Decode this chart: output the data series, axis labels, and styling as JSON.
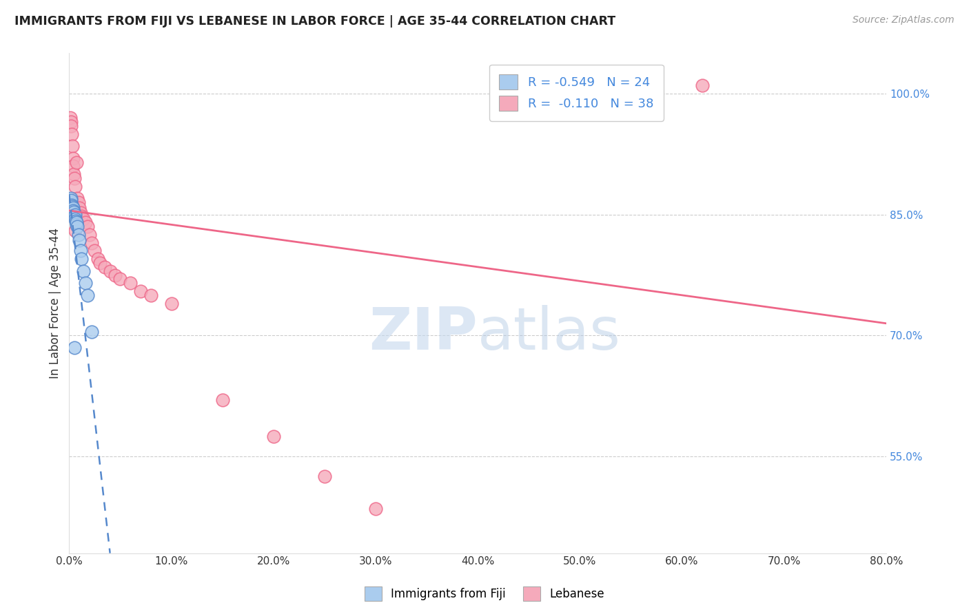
{
  "title": "IMMIGRANTS FROM FIJI VS LEBANESE IN LABOR FORCE | AGE 35-44 CORRELATION CHART",
  "source": "Source: ZipAtlas.com",
  "ylabel": "In Labor Force | Age 35-44",
  "x_tick_values": [
    0.0,
    10.0,
    20.0,
    30.0,
    40.0,
    50.0,
    60.0,
    70.0,
    80.0
  ],
  "y_tick_values": [
    55.0,
    70.0,
    85.0,
    100.0
  ],
  "xlim": [
    0.0,
    80.0
  ],
  "ylim": [
    43.0,
    105.0
  ],
  "fiji_R": "-0.549",
  "fiji_N": "24",
  "lebanese_R": "-0.110",
  "lebanese_N": "38",
  "fiji_color": "#aaccee",
  "lebanese_color": "#f5aabb",
  "fiji_line_color": "#5588cc",
  "lebanese_line_color": "#ee6688",
  "watermark_zip": "ZIP",
  "watermark_atlas": "atlas",
  "fiji_points_x": [
    0.1,
    0.15,
    0.2,
    0.25,
    0.3,
    0.35,
    0.4,
    0.45,
    0.5,
    0.55,
    0.6,
    0.65,
    0.7,
    0.75,
    0.8,
    0.9,
    1.0,
    1.1,
    1.2,
    1.4,
    1.6,
    1.8,
    2.2,
    0.5
  ],
  "fiji_points_y": [
    86.5,
    87.0,
    86.8,
    86.2,
    86.0,
    85.8,
    85.5,
    85.3,
    84.8,
    85.0,
    84.5,
    84.2,
    83.8,
    84.0,
    83.5,
    82.5,
    81.8,
    80.5,
    79.5,
    78.0,
    76.5,
    75.0,
    70.5,
    68.5
  ],
  "lebanese_points_x": [
    0.1,
    0.15,
    0.2,
    0.25,
    0.3,
    0.35,
    0.4,
    0.45,
    0.5,
    0.6,
    0.7,
    0.8,
    0.9,
    1.0,
    1.1,
    1.2,
    1.4,
    1.6,
    1.8,
    2.0,
    2.2,
    2.5,
    2.8,
    3.0,
    3.5,
    4.0,
    4.5,
    5.0,
    6.0,
    7.0,
    8.0,
    10.0,
    15.0,
    20.0,
    25.0,
    30.0,
    62.0,
    0.55
  ],
  "lebanese_points_y": [
    97.0,
    96.5,
    96.0,
    95.0,
    93.5,
    92.0,
    91.0,
    90.0,
    89.5,
    88.5,
    91.5,
    87.0,
    86.5,
    85.8,
    85.2,
    84.8,
    84.5,
    84.0,
    83.5,
    82.5,
    81.5,
    80.5,
    79.5,
    79.0,
    78.5,
    78.0,
    77.5,
    77.0,
    76.5,
    75.5,
    75.0,
    74.0,
    62.0,
    57.5,
    52.5,
    48.5,
    101.0,
    83.0
  ],
  "lebanese_trend_x0": 0.0,
  "lebanese_trend_y0": 85.5,
  "lebanese_trend_x1": 80.0,
  "lebanese_trend_y1": 71.5,
  "fiji_trend_x0": 0.0,
  "fiji_trend_y0": 87.5,
  "fiji_trend_x1": 4.0,
  "fiji_trend_y1": 43.0
}
